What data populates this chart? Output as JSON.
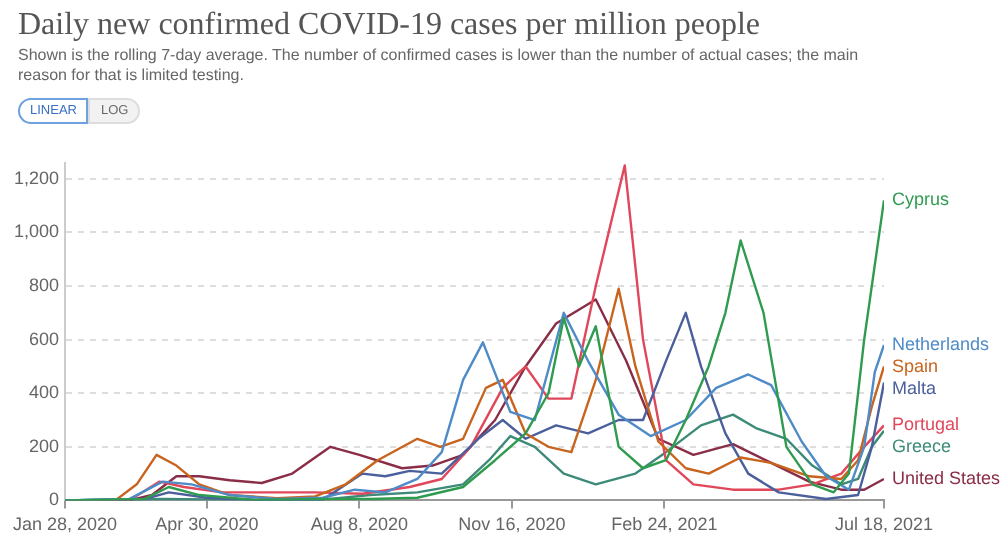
{
  "chart_data": {
    "type": "line",
    "title": "Daily new confirmed COVID-19 cases per million people",
    "subtitle": "Shown is the rolling 7-day average. The number of confirmed cases is lower than the number of actual cases; the main reason for that is limited testing.",
    "annotations": [
      "LINEAR",
      "LOG"
    ],
    "xlim": [
      "2020-01-28",
      "2021-07-18"
    ],
    "xticks": [
      {
        "value": "2020-01-28",
        "label": "Jan 28, 2020"
      },
      {
        "value": "2020-04-30",
        "label": "Apr 30, 2020"
      },
      {
        "value": "2020-08-08",
        "label": "Aug 8, 2020"
      },
      {
        "value": "2020-11-16",
        "label": "Nov 16, 2020"
      },
      {
        "value": "2021-02-24",
        "label": "Feb 24, 2021"
      },
      {
        "value": "2021-07-18",
        "label": "Jul 18, 2021"
      }
    ],
    "ylim": [
      0,
      1260
    ],
    "yticks": [
      0,
      {
        "value": 200,
        "label": "200"
      },
      {
        "value": 400,
        "label": "400"
      },
      {
        "value": 600,
        "label": "600"
      },
      {
        "value": 800,
        "label": "800"
      },
      {
        "value": 1000,
        "label": "1,000"
      },
      {
        "value": 1200,
        "label": "1,200"
      }
    ],
    "grid": "y",
    "legend": false,
    "marker": "none",
    "line_style": "solid",
    "series": [
      {
        "name": "Cyprus",
        "color": "#2f9b4f",
        "x": [
          "2020-01-28",
          "2020-03-20",
          "2020-04-05",
          "2020-04-25",
          "2020-06-01",
          "2020-07-15",
          "2020-08-15",
          "2020-09-15",
          "2020-10-15",
          "2020-11-05",
          "2020-11-25",
          "2020-12-10",
          "2020-12-20",
          "2020-12-30",
          "2021-01-10",
          "2021-01-25",
          "2021-02-10",
          "2021-02-25",
          "2021-03-10",
          "2021-03-25",
          "2021-04-05",
          "2021-04-15",
          "2021-04-30",
          "2021-05-15",
          "2021-06-01",
          "2021-06-15",
          "2021-06-25",
          "2021-07-05",
          "2021-07-18"
        ],
        "values": [
          0,
          5,
          50,
          20,
          2,
          5,
          5,
          10,
          50,
          150,
          250,
          400,
          680,
          500,
          650,
          200,
          120,
          150,
          300,
          500,
          700,
          970,
          700,
          200,
          60,
          30,
          100,
          600,
          1120
        ]
      },
      {
        "name": "Netherlands",
        "color": "#4e8bc7",
        "x": [
          "2020-01-28",
          "2020-03-10",
          "2020-04-01",
          "2020-04-20",
          "2020-05-15",
          "2020-06-15",
          "2020-07-15",
          "2020-08-05",
          "2020-08-25",
          "2020-09-15",
          "2020-10-01",
          "2020-10-15",
          "2020-10-28",
          "2020-11-15",
          "2020-12-01",
          "2020-12-20",
          "2021-01-05",
          "2021-01-25",
          "2021-02-15",
          "2021-03-10",
          "2021-03-30",
          "2021-04-20",
          "2021-05-05",
          "2021-05-25",
          "2021-06-10",
          "2021-06-25",
          "2021-07-05",
          "2021-07-12",
          "2021-07-18"
        ],
        "values": [
          0,
          5,
          70,
          60,
          20,
          5,
          10,
          40,
          30,
          80,
          180,
          450,
          590,
          330,
          300,
          700,
          520,
          320,
          240,
          300,
          420,
          470,
          430,
          220,
          90,
          40,
          200,
          480,
          580
        ]
      },
      {
        "name": "Spain",
        "color": "#c8641d",
        "x": [
          "2020-01-28",
          "2020-03-01",
          "2020-03-15",
          "2020-03-28",
          "2020-04-10",
          "2020-04-25",
          "2020-05-15",
          "2020-06-15",
          "2020-07-10",
          "2020-07-30",
          "2020-08-20",
          "2020-09-15",
          "2020-09-30",
          "2020-10-15",
          "2020-10-30",
          "2020-11-10",
          "2020-11-25",
          "2020-12-10",
          "2020-12-25",
          "2021-01-10",
          "2021-01-25",
          "2021-02-05",
          "2021-02-20",
          "2021-03-10",
          "2021-03-25",
          "2021-04-15",
          "2021-05-05",
          "2021-05-30",
          "2021-06-20",
          "2021-07-01",
          "2021-07-10",
          "2021-07-18"
        ],
        "values": [
          0,
          0,
          60,
          170,
          130,
          60,
          20,
          8,
          15,
          60,
          150,
          230,
          200,
          230,
          420,
          450,
          250,
          200,
          180,
          450,
          790,
          500,
          220,
          120,
          100,
          160,
          140,
          90,
          80,
          150,
          350,
          500
        ]
      },
      {
        "name": "Malta",
        "color": "#4a5f9c",
        "x": [
          "2020-01-28",
          "2020-03-20",
          "2020-04-05",
          "2020-04-30",
          "2020-06-01",
          "2020-07-15",
          "2020-08-10",
          "2020-08-25",
          "2020-09-10",
          "2020-10-01",
          "2020-10-25",
          "2020-11-10",
          "2020-11-25",
          "2020-12-15",
          "2021-01-05",
          "2021-01-25",
          "2021-02-10",
          "2021-02-25",
          "2021-03-10",
          "2021-03-20",
          "2021-04-05",
          "2021-04-20",
          "2021-05-10",
          "2021-06-10",
          "2021-07-01",
          "2021-07-10",
          "2021-07-18"
        ],
        "values": [
          0,
          5,
          30,
          10,
          2,
          2,
          100,
          90,
          110,
          100,
          230,
          300,
          230,
          280,
          250,
          300,
          300,
          520,
          700,
          500,
          250,
          100,
          30,
          5,
          20,
          200,
          440
        ]
      },
      {
        "name": "Portugal",
        "color": "#e1475b",
        "x": [
          "2020-01-28",
          "2020-03-10",
          "2020-03-30",
          "2020-04-15",
          "2020-05-10",
          "2020-06-10",
          "2020-07-10",
          "2020-08-10",
          "2020-09-10",
          "2020-10-01",
          "2020-10-20",
          "2020-11-10",
          "2020-11-25",
          "2020-12-10",
          "2020-12-25",
          "2021-01-10",
          "2021-01-29",
          "2021-02-10",
          "2021-02-25",
          "2021-03-15",
          "2021-04-10",
          "2021-05-10",
          "2021-06-01",
          "2021-06-20",
          "2021-07-05",
          "2021-07-18"
        ],
        "values": [
          0,
          0,
          70,
          50,
          30,
          30,
          30,
          25,
          50,
          80,
          200,
          420,
          500,
          380,
          380,
          800,
          1250,
          600,
          150,
          60,
          40,
          40,
          60,
          100,
          200,
          280
        ]
      },
      {
        "name": "Greece",
        "color": "#3d8a78",
        "x": [
          "2020-01-28",
          "2020-04-01",
          "2020-06-01",
          "2020-07-15",
          "2020-08-15",
          "2020-09-15",
          "2020-10-15",
          "2020-11-01",
          "2020-11-15",
          "2020-12-01",
          "2020-12-20",
          "2021-01-10",
          "2021-02-05",
          "2021-02-25",
          "2021-03-20",
          "2021-04-10",
          "2021-04-25",
          "2021-05-15",
          "2021-06-01",
          "2021-06-20",
          "2021-07-01",
          "2021-07-10",
          "2021-07-18"
        ],
        "values": [
          0,
          5,
          2,
          3,
          20,
          30,
          60,
          150,
          240,
          200,
          100,
          60,
          100,
          180,
          280,
          320,
          270,
          230,
          130,
          60,
          80,
          200,
          260
        ]
      },
      {
        "name": "United States",
        "color": "#8a2d46",
        "x": [
          "2020-01-28",
          "2020-03-10",
          "2020-03-25",
          "2020-04-10",
          "2020-04-25",
          "2020-05-15",
          "2020-06-05",
          "2020-06-25",
          "2020-07-20",
          "2020-08-08",
          "2020-09-05",
          "2020-09-25",
          "2020-10-15",
          "2020-11-05",
          "2020-11-25",
          "2020-12-15",
          "2021-01-10",
          "2021-01-30",
          "2021-02-20",
          "2021-03-15",
          "2021-04-10",
          "2021-05-05",
          "2021-05-30",
          "2021-06-20",
          "2021-07-05",
          "2021-07-18"
        ],
        "values": [
          0,
          0,
          20,
          90,
          90,
          75,
          65,
          100,
          200,
          170,
          120,
          130,
          170,
          300,
          500,
          660,
          750,
          520,
          230,
          170,
          210,
          140,
          70,
          40,
          40,
          80
        ]
      }
    ]
  }
}
